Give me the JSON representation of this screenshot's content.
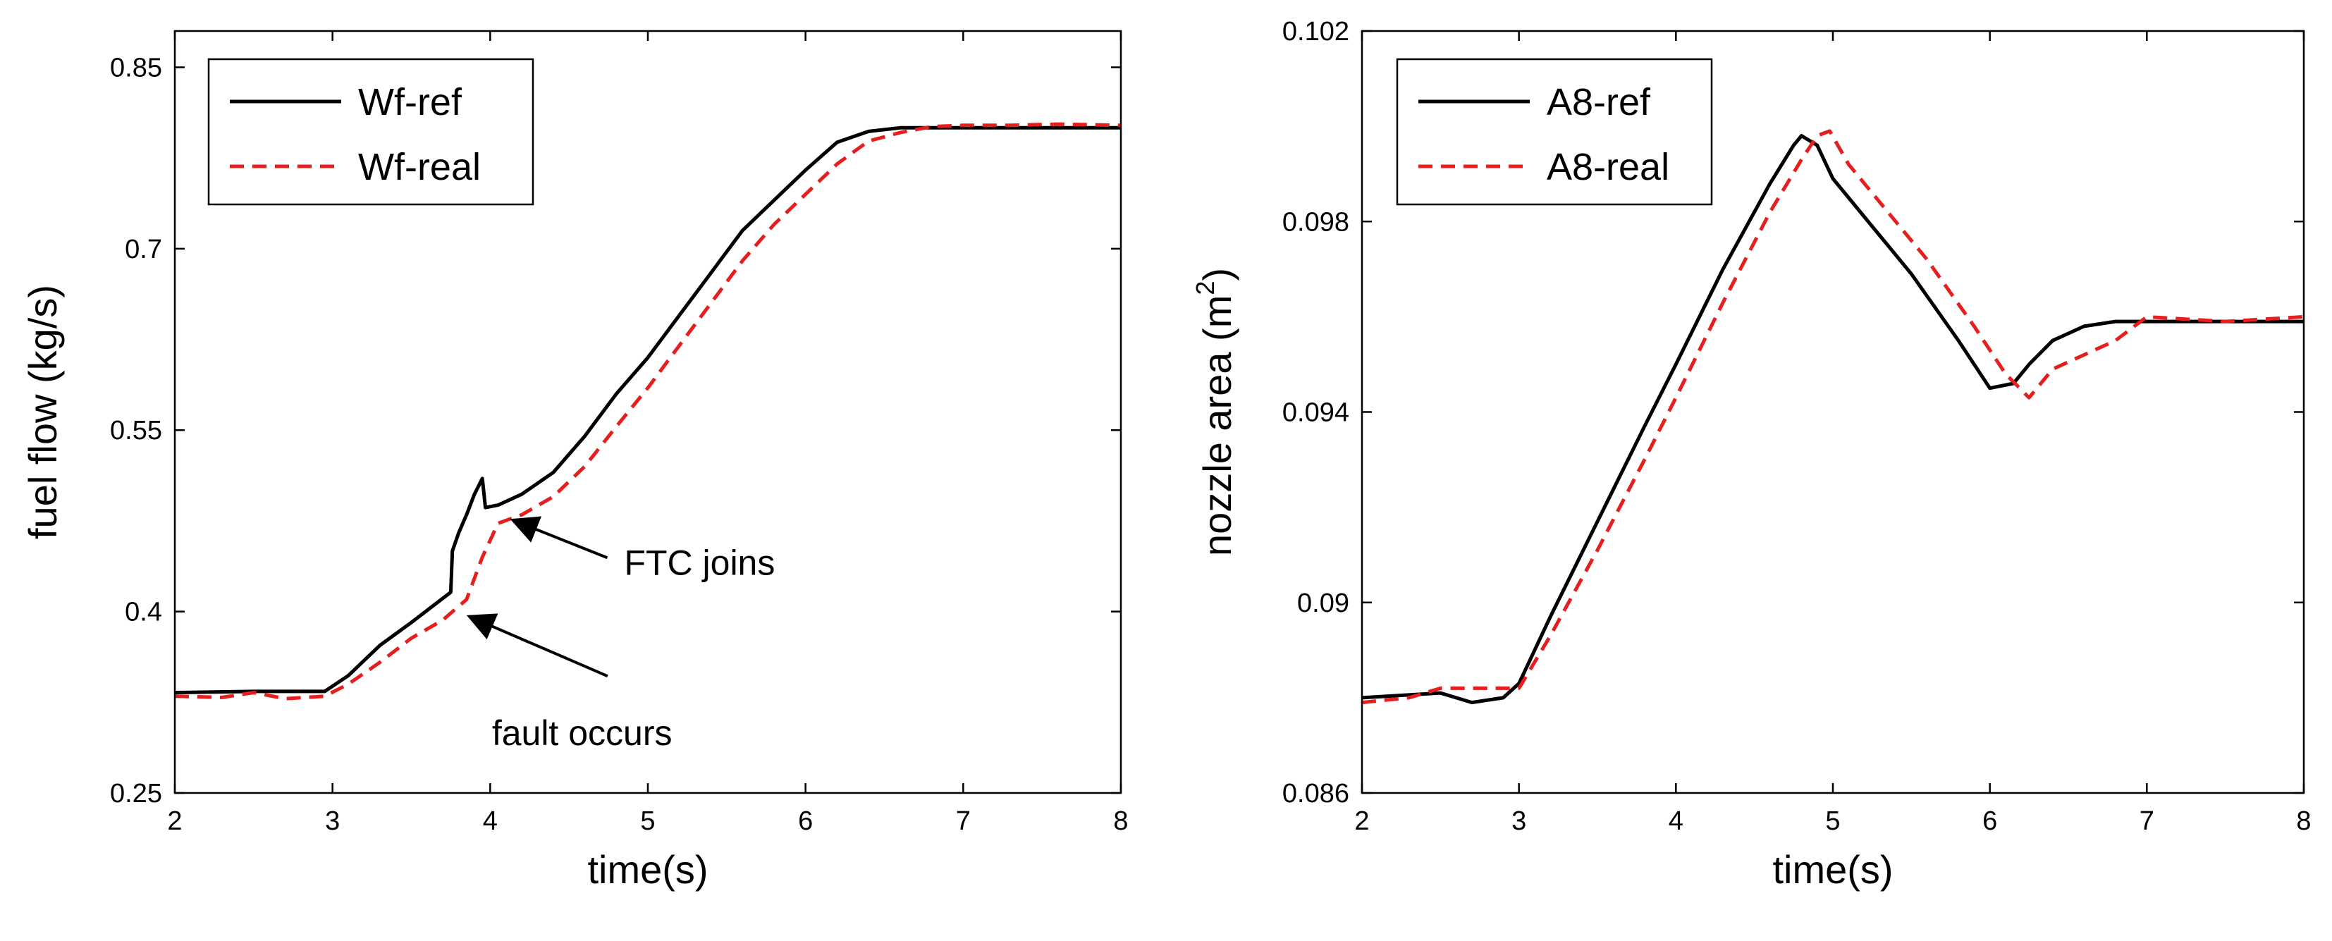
{
  "chart_data": [
    {
      "type": "line",
      "xlabel": "time(s)",
      "ylabel": "fuel flow (kg/s)",
      "xlim": [
        2,
        8
      ],
      "ylim": [
        0.25,
        0.88
      ],
      "xticks": [
        2,
        3,
        4,
        5,
        6,
        7,
        8
      ],
      "xtick_labels": [
        "2",
        "3",
        "4",
        "5",
        "6",
        "7",
        "8"
      ],
      "yticks": [
        0.25,
        0.4,
        0.55,
        0.7,
        0.85
      ],
      "ytick_labels": [
        "0.25",
        "0.4",
        "0.55",
        "0.7",
        "0.85"
      ],
      "legend_position": "top-left",
      "series": [
        {
          "name": "Wf-ref",
          "color": "#000000",
          "dash": "solid",
          "x": [
            2,
            2.5,
            2.95,
            3.1,
            3.3,
            3.5,
            3.75,
            3.76,
            3.8,
            3.85,
            3.9,
            3.95,
            3.97,
            4.05,
            4.2,
            4.4,
            4.6,
            4.8,
            5.0,
            5.2,
            5.4,
            5.6,
            5.8,
            6.0,
            6.2,
            6.4,
            6.6,
            6.8,
            7.0,
            7.3,
            7.6,
            8.0
          ],
          "y": [
            0.333,
            0.334,
            0.334,
            0.347,
            0.372,
            0.391,
            0.416,
            0.45,
            0.465,
            0.48,
            0.497,
            0.51,
            0.486,
            0.488,
            0.497,
            0.515,
            0.545,
            0.58,
            0.61,
            0.645,
            0.68,
            0.715,
            0.74,
            0.765,
            0.788,
            0.797,
            0.8,
            0.8,
            0.8,
            0.8,
            0.8,
            0.8
          ]
        },
        {
          "name": "Wf-real",
          "color": "#e51e1e",
          "dash": "dashed",
          "x": [
            2,
            2.3,
            2.5,
            2.7,
            2.95,
            3.1,
            3.3,
            3.5,
            3.7,
            3.85,
            3.95,
            4.05,
            4.2,
            4.4,
            4.6,
            4.8,
            5.0,
            5.2,
            5.4,
            5.6,
            5.8,
            6.0,
            6.2,
            6.4,
            6.6,
            6.8,
            7.0,
            7.3,
            7.6,
            8.0
          ],
          "y": [
            0.33,
            0.329,
            0.333,
            0.328,
            0.33,
            0.34,
            0.358,
            0.378,
            0.393,
            0.41,
            0.445,
            0.473,
            0.48,
            0.495,
            0.52,
            0.553,
            0.585,
            0.62,
            0.655,
            0.69,
            0.72,
            0.745,
            0.77,
            0.789,
            0.796,
            0.801,
            0.802,
            0.802,
            0.803,
            0.802
          ]
        }
      ],
      "annotations": [
        {
          "text": "FTC joins",
          "point": [
            4.08,
            0.478
          ],
          "text_at": [
            4.85,
            0.441
          ]
        },
        {
          "text": "fault occurs",
          "point": [
            3.84,
            0.403
          ],
          "text_at": [
            4.95,
            0.3
          ]
        }
      ]
    },
    {
      "type": "line",
      "xlabel": "time(s)",
      "ylabel": "nozzle area (m²)",
      "ylabel_main": "nozzle area (m",
      "ylabel_sup": "2",
      "ylabel_close": ")",
      "xlim": [
        2,
        8
      ],
      "ylim": [
        0.086,
        0.102
      ],
      "xticks": [
        2,
        3,
        4,
        5,
        6,
        7,
        8
      ],
      "xtick_labels": [
        "2",
        "3",
        "4",
        "5",
        "6",
        "7",
        "8"
      ],
      "yticks": [
        0.086,
        0.09,
        0.094,
        0.098,
        0.102
      ],
      "ytick_labels": [
        "0.086",
        "0.09",
        "0.094",
        "0.098",
        "0.102"
      ],
      "legend_position": "top-left",
      "series": [
        {
          "name": "A8-ref",
          "color": "#000000",
          "dash": "solid",
          "x": [
            2,
            2.5,
            2.7,
            2.9,
            3.0,
            3.2,
            3.5,
            3.8,
            4.0,
            4.3,
            4.6,
            4.75,
            4.8,
            4.9,
            5.0,
            5.2,
            5.5,
            5.8,
            6.0,
            6.15,
            6.25,
            6.4,
            6.6,
            6.8,
            7.0,
            7.5,
            8.0
          ],
          "y": [
            0.088,
            0.0881,
            0.0879,
            0.088,
            0.0883,
            0.0897,
            0.0917,
            0.0937,
            0.095,
            0.097,
            0.0988,
            0.0996,
            0.0998,
            0.0996,
            0.0989,
            0.0981,
            0.0969,
            0.0955,
            0.0945,
            0.0946,
            0.095,
            0.0955,
            0.0958,
            0.0959,
            0.0959,
            0.0959,
            0.0959
          ]
        },
        {
          "name": "A8-real",
          "color": "#e51e1e",
          "dash": "dashed",
          "x": [
            2,
            2.3,
            2.5,
            2.8,
            3.0,
            3.2,
            3.5,
            3.8,
            4.0,
            4.3,
            4.6,
            4.8,
            4.9,
            4.98,
            5.1,
            5.3,
            5.6,
            5.9,
            6.1,
            6.25,
            6.4,
            6.6,
            6.8,
            7.0,
            7.5,
            8.0
          ],
          "y": [
            0.0879,
            0.088,
            0.0882,
            0.0882,
            0.0882,
            0.0893,
            0.0911,
            0.093,
            0.0943,
            0.0963,
            0.0982,
            0.0993,
            0.0998,
            0.0999,
            0.0992,
            0.0984,
            0.0972,
            0.0958,
            0.0948,
            0.0943,
            0.0949,
            0.0952,
            0.0955,
            0.096,
            0.0959,
            0.096
          ]
        }
      ],
      "annotations": []
    }
  ]
}
